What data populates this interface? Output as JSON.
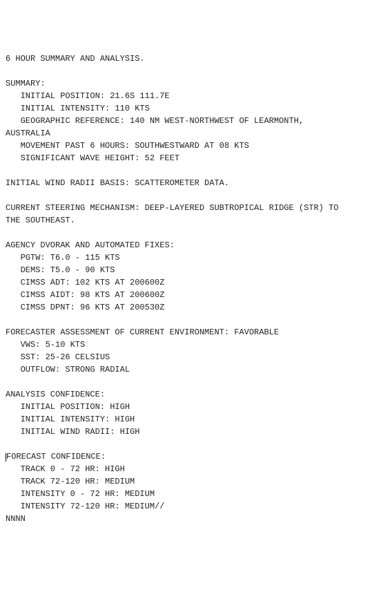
{
  "header": "6 HOUR SUMMARY AND ANALYSIS.",
  "summary_label": "SUMMARY:",
  "summary": {
    "initial_position": "INITIAL POSITION: 21.6S 111.7E",
    "initial_intensity": "INITIAL INTENSITY: 110 KTS",
    "geo_ref_1": "GEOGRAPHIC REFERENCE: 140 NM WEST-NORTHWEST OF LEARMONTH,",
    "geo_ref_2": "AUSTRALIA",
    "movement": "MOVEMENT PAST 6 HOURS: SOUTHWESTWARD AT 08 KTS",
    "wave_height": "SIGNIFICANT WAVE HEIGHT: 52 FEET"
  },
  "wind_radii": "INITIAL WIND RADII BASIS: SCATTEROMETER DATA.",
  "steering_1": "CURRENT STEERING MECHANISM: DEEP-LAYERED SUBTROPICAL RIDGE (STR) TO",
  "steering_2": "THE SOUTHEAST.",
  "dvorak_label": "AGENCY DVORAK AND AUTOMATED FIXES:",
  "dvorak": {
    "pgtw": "PGTW: T6.0 - 115 KTS",
    "dems": "DEMS: T5.0 - 90 KTS",
    "cimss_adt": "CIMSS ADT: 102 KTS AT 200600Z",
    "cimss_aidt": "CIMSS AIDT: 98 KTS AT 200600Z",
    "cimss_dpnt": "CIMSS DPNT: 96 KTS AT 200530Z"
  },
  "forecaster_label": "FORECASTER ASSESSMENT OF CURRENT ENVIRONMENT: FAVORABLE",
  "forecaster": {
    "vws": "VWS: 5-10 KTS",
    "sst": "SST: 25-26 CELSIUS",
    "outflow": "OUTFLOW: STRONG RADIAL"
  },
  "analysis_label": "ANALYSIS CONFIDENCE:",
  "analysis": {
    "pos": "INITIAL POSITION: HIGH",
    "intensity": "INITIAL INTENSITY: HIGH",
    "wind": "INITIAL WIND RADII: HIGH"
  },
  "forecast_label": "FORECAST CONFIDENCE:",
  "forecast": {
    "t1": "TRACK 0 - 72 HR: HIGH",
    "t2": "TRACK 72-120 HR: MEDIUM",
    "i1": "INTENSITY 0 - 72 HR: MEDIUM",
    "i2": "INTENSITY 72-120 HR: MEDIUM//"
  },
  "footer": "NNNN"
}
